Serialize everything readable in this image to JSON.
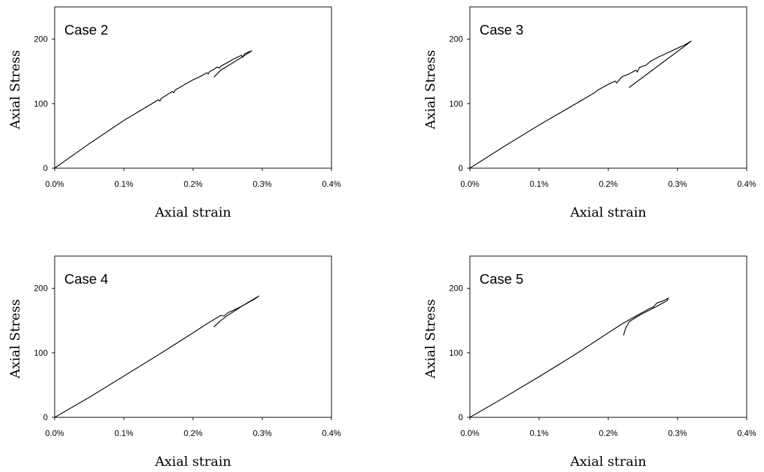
{
  "chart_data": [
    {
      "type": "line",
      "title": "Case 2",
      "xlabel": "Axial strain",
      "ylabel": "Axial Stress",
      "xlim": [
        0,
        0.004
      ],
      "ylim": [
        0,
        250
      ],
      "xticks": [
        "0.0%",
        "0.1%",
        "0.2%",
        "0.3%",
        "0.4%"
      ],
      "yticks": [
        "0",
        "100",
        "200"
      ],
      "grid": false,
      "series": [
        {
          "x": [
            0,
            0.0005,
            0.001,
            0.0015,
            0.00152,
            0.00154,
            0.0017,
            0.00172,
            0.00174,
            0.0019,
            0.002,
            0.0021,
            0.0022,
            0.00222,
            0.00224,
            0.0023,
            0.00235,
            0.00238,
            0.0024,
            0.0025,
            0.0026,
            0.0027,
            0.00272,
            0.00274,
            0.0028,
            0.00285,
            0.0026,
            0.0024,
            0.0023
          ],
          "y": [
            0,
            38,
            74,
            106,
            104,
            108,
            119,
            117,
            121,
            131,
            137,
            142,
            148,
            146,
            150,
            153,
            157,
            155,
            158,
            164,
            170,
            175,
            172,
            177,
            180,
            182,
            165,
            152,
            141
          ]
        }
      ]
    },
    {
      "type": "line",
      "title": "Case 3",
      "xlabel": "Axial strain",
      "ylabel": "Axial Stress",
      "xlim": [
        0,
        0.004
      ],
      "ylim": [
        0,
        250
      ],
      "xticks": [
        "0.0%",
        "0.1%",
        "0.2%",
        "0.3%",
        "0.4%"
      ],
      "yticks": [
        "0",
        "100",
        "200"
      ],
      "grid": false,
      "series": [
        {
          "x": [
            0,
            0.0005,
            0.001,
            0.0015,
            0.0018,
            0.00185,
            0.0019,
            0.002,
            0.0021,
            0.00212,
            0.0022,
            0.0023,
            0.0024,
            0.00242,
            0.00245,
            0.0025,
            0.00255,
            0.0026,
            0.0027,
            0.0028,
            0.0029,
            0.003,
            0.0031,
            0.0032,
            0.0023
          ],
          "y": [
            0,
            34,
            67,
            98,
            117,
            121,
            124,
            130,
            135,
            132,
            142,
            146,
            152,
            149,
            156,
            158,
            160,
            165,
            171,
            176,
            181,
            186,
            191,
            197,
            125
          ]
        }
      ]
    },
    {
      "type": "line",
      "title": "Case 4",
      "xlabel": "Axial strain",
      "ylabel": "Axial Stress",
      "xlim": [
        0,
        0.004
      ],
      "ylim": [
        0,
        250
      ],
      "xticks": [
        "0.0%",
        "0.1%",
        "0.2%",
        "0.3%",
        "0.4%"
      ],
      "yticks": [
        "0",
        "100",
        "200"
      ],
      "grid": false,
      "series": [
        {
          "x": [
            0,
            0.0005,
            0.001,
            0.0015,
            0.002,
            0.0022,
            0.0024,
            0.00245,
            0.0025,
            0.0026,
            0.0027,
            0.0028,
            0.0029,
            0.00295,
            0.0027,
            0.0025,
            0.0024,
            0.0023
          ],
          "y": [
            0,
            31,
            64,
            97,
            131,
            145,
            158,
            157,
            162,
            167,
            172,
            178,
            184,
            188,
            172,
            158,
            150,
            140
          ]
        }
      ]
    },
    {
      "type": "line",
      "title": "Case 5",
      "xlabel": "Axial strain",
      "ylabel": "Axial Stress",
      "xlim": [
        0,
        0.004
      ],
      "ylim": [
        0,
        250
      ],
      "xticks": [
        "0.0%",
        "0.1%",
        "0.2%",
        "0.3%",
        "0.4%"
      ],
      "yticks": [
        "0",
        "100",
        "200"
      ],
      "grid": false,
      "series": [
        {
          "x": [
            0,
            0.0005,
            0.001,
            0.0015,
            0.002,
            0.0022,
            0.0024,
            0.0025,
            0.0026,
            0.00265,
            0.0027,
            0.0028,
            0.00287,
            0.00285,
            0.0027,
            0.0025,
            0.0024,
            0.0023,
            0.00225,
            0.00222
          ],
          "y": [
            0,
            31,
            63,
            96,
            131,
            145,
            157,
            163,
            169,
            171,
            177,
            181,
            185,
            181,
            172,
            161,
            155,
            148,
            138,
            127
          ]
        }
      ]
    }
  ]
}
